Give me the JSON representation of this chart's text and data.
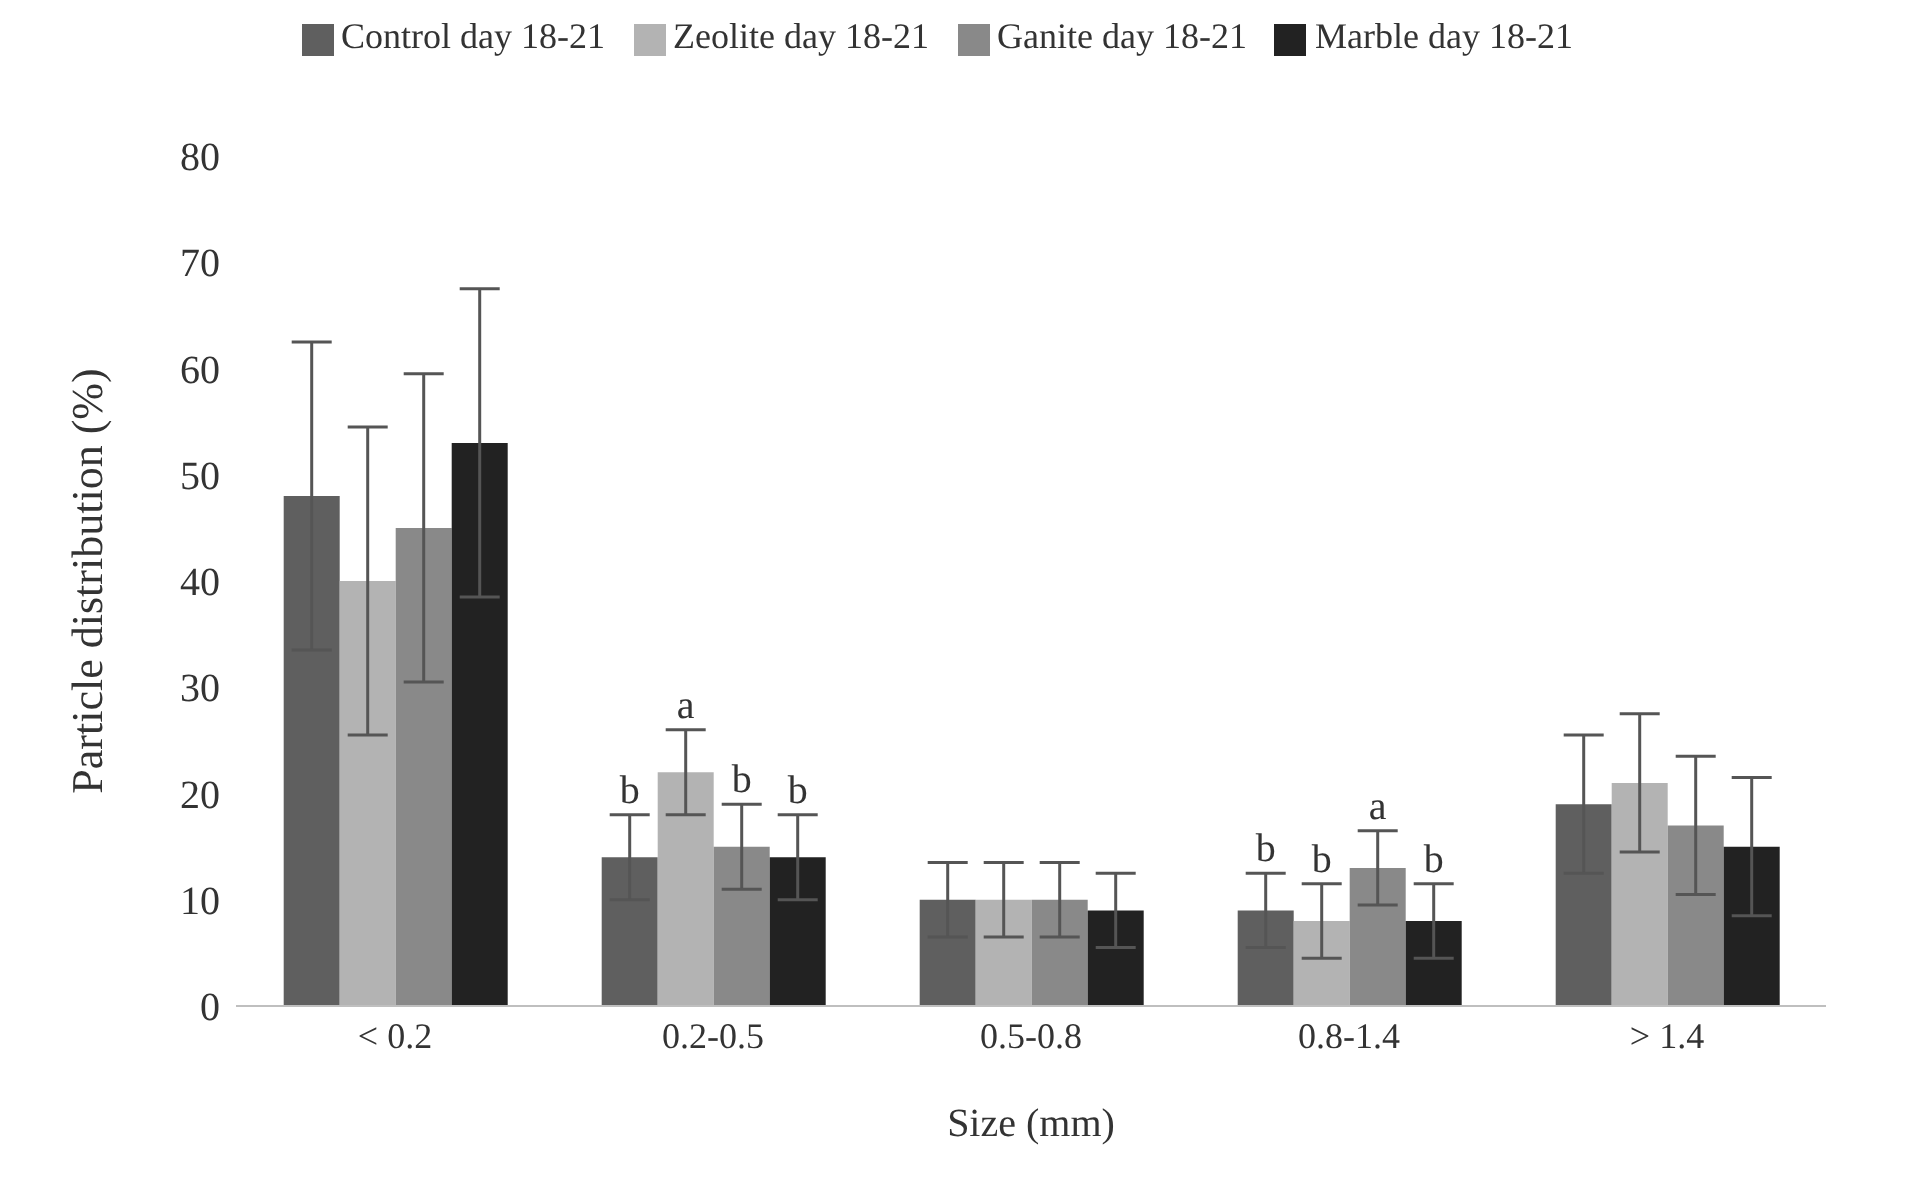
{
  "chart_data": {
    "type": "bar",
    "xlabel": "Size (mm)",
    "ylabel": "Particle distribution (%)",
    "categories": [
      "< 0.2",
      "0.2-0.5",
      "0.5-0.8",
      "0.8-1.4",
      "> 1.4"
    ],
    "series": [
      {
        "name": "Control day 18-21",
        "color": "#5f5f5f",
        "values": [
          48,
          14,
          10,
          9,
          19
        ],
        "errors": [
          14.5,
          4,
          3.5,
          3.5,
          6.5
        ],
        "value_labels": [
          null,
          "b",
          null,
          "b",
          null
        ]
      },
      {
        "name": "Zeolite day 18-21",
        "color": "#b3b3b3",
        "values": [
          40,
          22,
          10,
          8,
          21
        ],
        "errors": [
          14.5,
          4,
          3.5,
          3.5,
          6.5
        ],
        "value_labels": [
          null,
          "a",
          null,
          "b",
          null
        ]
      },
      {
        "name": "Ganite day 18-21",
        "color": "#898989",
        "values": [
          45,
          15,
          10,
          13,
          17
        ],
        "errors": [
          14.5,
          4,
          3.5,
          3.5,
          6.5
        ],
        "value_labels": [
          null,
          "b",
          null,
          "a",
          null
        ]
      },
      {
        "name": "Marble day 18-21",
        "color": "#222222",
        "values": [
          53,
          14,
          9,
          8,
          15
        ],
        "errors": [
          14.5,
          4,
          3.5,
          3.5,
          6.5
        ],
        "value_labels": [
          null,
          "b",
          null,
          "b",
          null
        ]
      }
    ],
    "ylim": [
      0,
      80
    ],
    "yticks": [
      0,
      10,
      20,
      30,
      40,
      50,
      60,
      70,
      80
    ],
    "grid": false,
    "legend": "top"
  }
}
